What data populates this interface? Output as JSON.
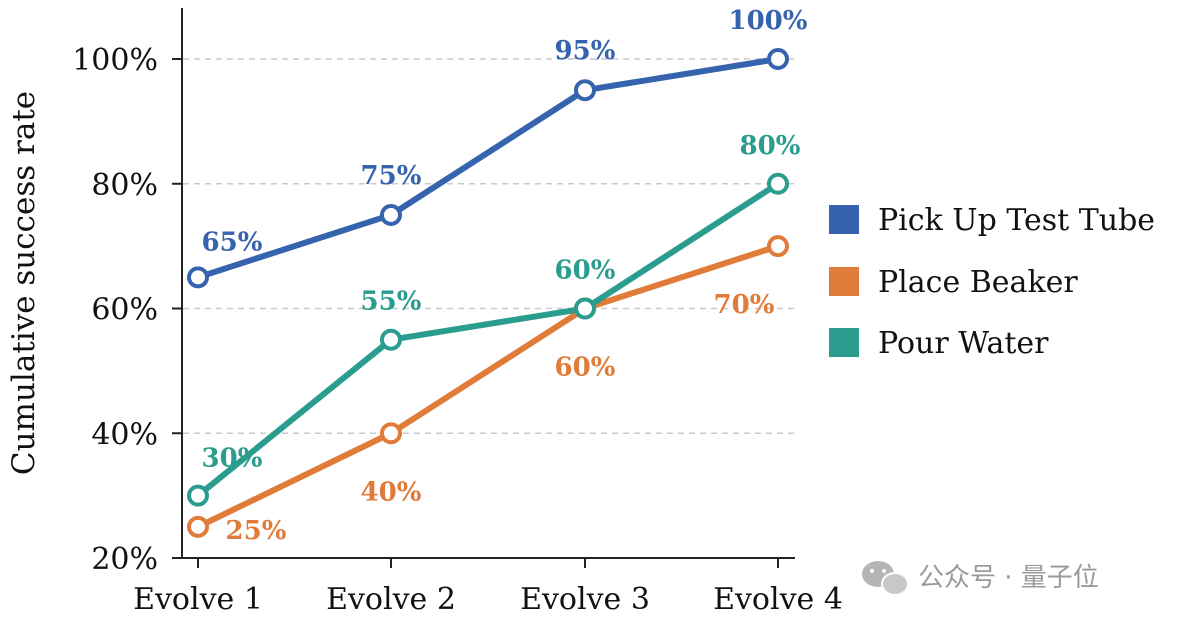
{
  "chart_data": {
    "type": "line",
    "title": "",
    "xlabel": "",
    "ylabel": "Cumulative success rate",
    "categories": [
      "Evolve 1",
      "Evolve 2",
      "Evolve 3",
      "Evolve 4"
    ],
    "ylim": [
      20,
      100
    ],
    "yticks": [
      20,
      40,
      60,
      80,
      100
    ],
    "ytick_labels": [
      "20%",
      "40%",
      "60%",
      "80%",
      "100%"
    ],
    "grid": "horizontal dashed",
    "legend_position": "right",
    "series": [
      {
        "name": "Pick Up Test Tube",
        "color": "#3563ad",
        "values": [
          65,
          75,
          95,
          100
        ],
        "labels": [
          "65%",
          "75%",
          "95%",
          "100%"
        ]
      },
      {
        "name": "Place Beaker",
        "color": "#e07b39",
        "values": [
          25,
          40,
          60,
          70
        ],
        "labels": [
          "25%",
          "40%",
          "60%",
          "70%"
        ]
      },
      {
        "name": "Pour Water",
        "color": "#2a9d8f",
        "values": [
          30,
          55,
          60,
          80
        ],
        "labels": [
          "30%",
          "55%",
          "60%",
          "80%"
        ]
      }
    ]
  },
  "watermark": {
    "text": "公众号 · 量子位",
    "icon": "wechat-icon"
  }
}
